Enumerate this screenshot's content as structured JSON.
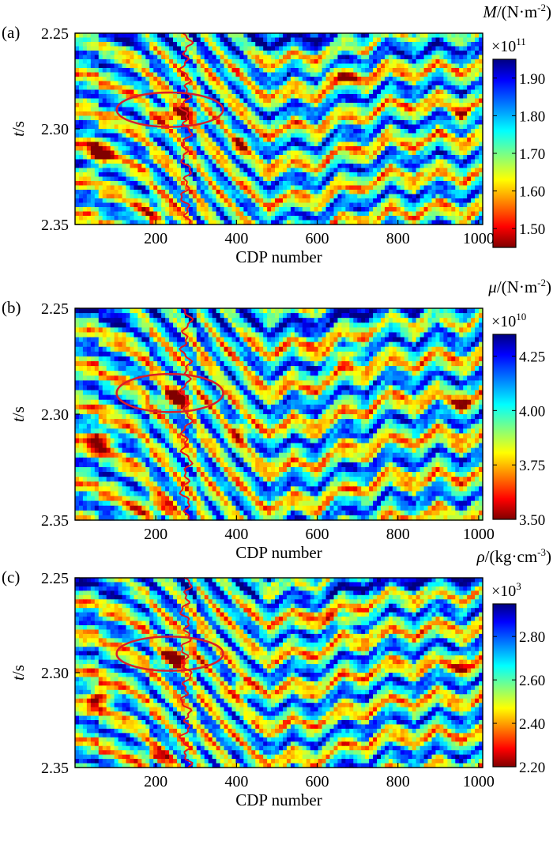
{
  "chart_data": [
    {
      "type": "heatmap",
      "panel_label": "(a)",
      "xlabel": "CDP number",
      "ylabel_var": "t",
      "ylabel_unit": "/s",
      "x_ticks": [
        "200",
        "400",
        "600",
        "800",
        "1000"
      ],
      "x_tick_values": [
        200,
        400,
        600,
        800,
        1000
      ],
      "xlim": [
        0,
        1010
      ],
      "y_ticks": [
        "2.25",
        "2.30",
        "2.35"
      ],
      "y_tick_values": [
        2.25,
        2.3,
        2.35
      ],
      "ylim": [
        2.25,
        2.35
      ],
      "colorbar": {
        "title_var": "M",
        "title_unit_open": "/(N·m",
        "title_unit_exp": "-2",
        "title_unit_close": ")",
        "scale_base": "×10",
        "scale_exp": "11",
        "ticks": [
          "1.90",
          "1.80",
          "1.70",
          "1.60",
          "1.50"
        ],
        "tick_values": [
          1.9,
          1.8,
          1.7,
          1.6,
          1.5
        ],
        "range": [
          1.45,
          1.95
        ]
      },
      "well_log_cdp": 275,
      "ellipse": {
        "center_cdp": 235,
        "center_t": 2.29,
        "half_width_cdp": 132,
        "half_height_t": 0.009
      },
      "colormap": "jet-reversed",
      "seed": 11
    },
    {
      "type": "heatmap",
      "panel_label": "(b)",
      "xlabel": "CDP number",
      "ylabel_var": "t",
      "ylabel_unit": "/s",
      "x_ticks": [
        "200",
        "400",
        "600",
        "800",
        "1000"
      ],
      "x_tick_values": [
        200,
        400,
        600,
        800,
        1000
      ],
      "xlim": [
        0,
        1010
      ],
      "y_ticks": [
        "2.25",
        "2.30",
        "2.35"
      ],
      "y_tick_values": [
        2.25,
        2.3,
        2.35
      ],
      "ylim": [
        2.25,
        2.35
      ],
      "colorbar": {
        "title_var": "μ",
        "title_unit_open": "/(N·m",
        "title_unit_exp": "-2",
        "title_unit_close": ")",
        "scale_base": "×10",
        "scale_exp": "10",
        "ticks": [
          "4.25",
          "4.00",
          "3.75",
          "3.50"
        ],
        "tick_values": [
          4.25,
          4.0,
          3.75,
          3.5
        ],
        "range": [
          3.5,
          4.35
        ]
      },
      "well_log_cdp": 275,
      "ellipse": {
        "center_cdp": 235,
        "center_t": 2.29,
        "half_width_cdp": 132,
        "half_height_t": 0.009
      },
      "colormap": "jet-reversed",
      "seed": 23
    },
    {
      "type": "heatmap",
      "panel_label": "(c)",
      "xlabel": "CDP number",
      "ylabel_var": "t",
      "ylabel_unit": "/s",
      "x_ticks": [
        "200",
        "400",
        "600",
        "800",
        "1000"
      ],
      "x_tick_values": [
        200,
        400,
        600,
        800,
        1000
      ],
      "xlim": [
        0,
        1010
      ],
      "y_ticks": [
        "2.25",
        "2.30",
        "2.35"
      ],
      "y_tick_values": [
        2.25,
        2.3,
        2.35
      ],
      "ylim": [
        2.25,
        2.35
      ],
      "colorbar": {
        "title_var": "ρ",
        "title_unit_open": "/(kg·cm",
        "title_unit_exp": "-3",
        "title_unit_close": ")",
        "scale_base": "×10",
        "scale_exp": "3",
        "ticks": [
          "2.80",
          "2.60",
          "2.40",
          "2.20"
        ],
        "tick_values": [
          2.8,
          2.6,
          2.4,
          2.2
        ],
        "range": [
          2.2,
          2.95
        ]
      },
      "well_log_cdp": 275,
      "ellipse": {
        "center_cdp": 235,
        "center_t": 2.29,
        "half_width_cdp": 132,
        "half_height_t": 0.009
      },
      "colormap": "jet-reversed",
      "seed": 37
    }
  ],
  "colors": {
    "well_log": "#e8141c",
    "ellipse": "#d81e2a",
    "axis": "#000000"
  }
}
